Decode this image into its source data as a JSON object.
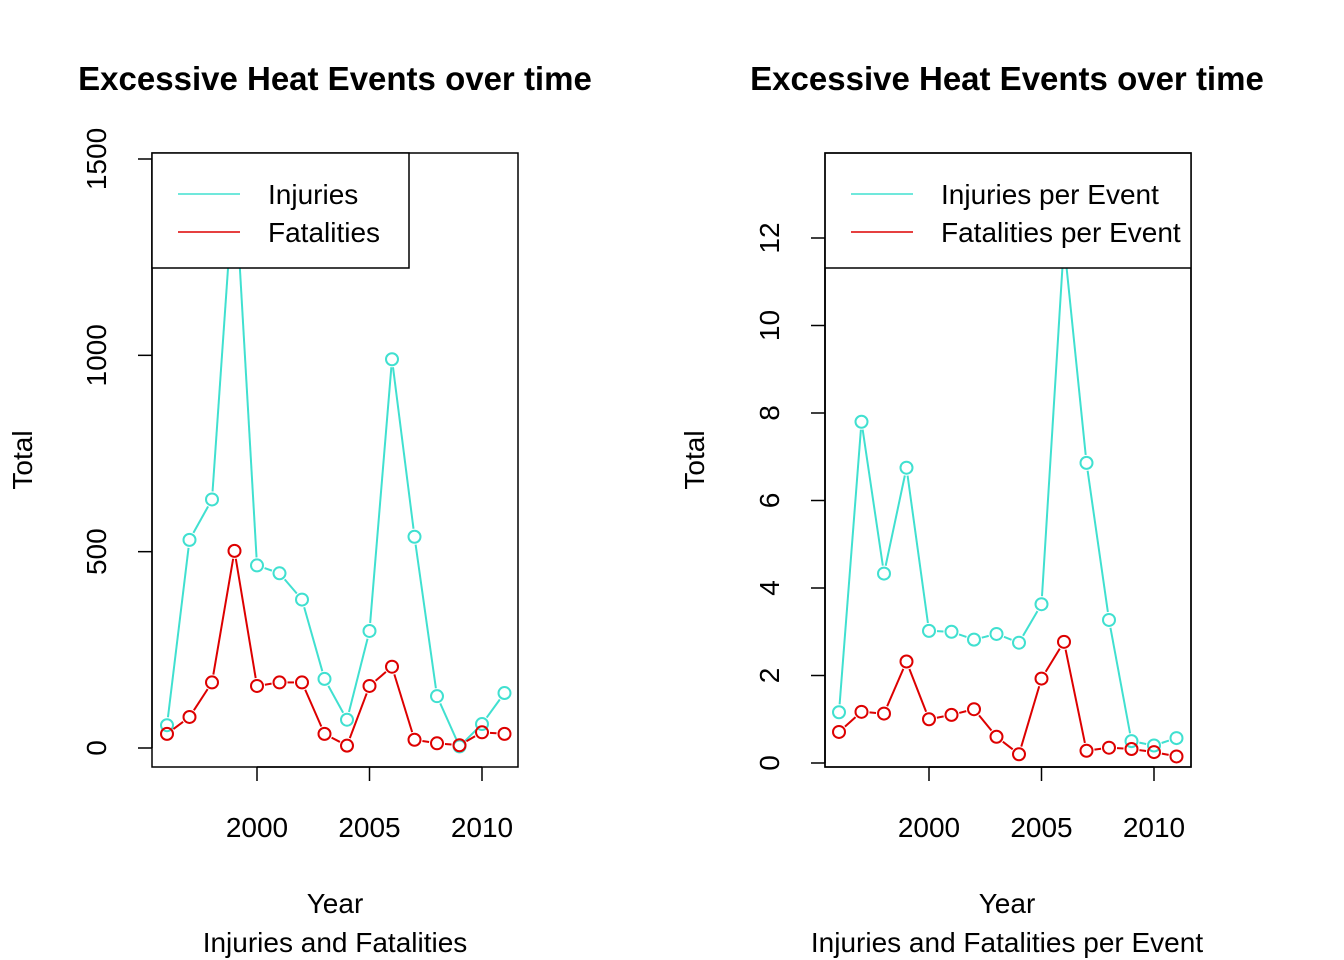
{
  "chart_data": [
    {
      "type": "line",
      "title": "Excessive Heat Events over time",
      "xlabel": "Year",
      "subtitle": "Injuries and Fatalities",
      "ylabel": "Total",
      "xlim": [
        1996,
        2011
      ],
      "ylim": [
        0,
        1500
      ],
      "xticks": [
        2000,
        2005,
        2010
      ],
      "yticks": [
        0,
        500,
        1000,
        1500
      ],
      "x": [
        1996,
        1997,
        1998,
        1999,
        2000,
        2001,
        2002,
        2003,
        2004,
        2005,
        2006,
        2007,
        2008,
        2009,
        2010,
        2011
      ],
      "series": [
        {
          "name": "Injuries",
          "color": "#40E0D0",
          "values": [
            58,
            530,
            633,
            1460,
            465,
            445,
            378,
            176,
            72,
            298,
            990,
            538,
            132,
            4,
            61,
            140
          ]
        },
        {
          "name": "Fatalities",
          "color": "#DD0000",
          "values": [
            36,
            79,
            167,
            502,
            158,
            167,
            167,
            36,
            6,
            158,
            207,
            21,
            12,
            7,
            40,
            36
          ]
        }
      ],
      "legend_position": "top-left",
      "grid": false
    },
    {
      "type": "line",
      "title": "Excessive Heat Events over time",
      "xlabel": "Year",
      "subtitle": "Injuries and Fatalities per Event",
      "ylabel": "Total",
      "xlim": [
        1996,
        2011
      ],
      "ylim": [
        0,
        13.6
      ],
      "xticks": [
        2000,
        2005,
        2010
      ],
      "yticks": [
        0,
        2,
        4,
        6,
        8,
        10,
        12
      ],
      "x": [
        1996,
        1997,
        1998,
        1999,
        2000,
        2001,
        2002,
        2003,
        2004,
        2005,
        2006,
        2007,
        2008,
        2009,
        2010,
        2011
      ],
      "series": [
        {
          "name": "Injuries per Event",
          "color": "#40E0D0",
          "values": [
            1.16,
            7.8,
            4.33,
            6.75,
            3.02,
            3.0,
            2.82,
            2.95,
            2.75,
            3.63,
            11.9,
            6.86,
            3.27,
            0.5,
            0.4,
            0.57
          ]
        },
        {
          "name": "Fatalities per Event",
          "color": "#DD0000",
          "values": [
            0.71,
            1.17,
            1.13,
            2.32,
            1.0,
            1.1,
            1.23,
            0.6,
            0.2,
            1.93,
            2.77,
            0.28,
            0.35,
            0.32,
            0.25,
            0.15
          ]
        }
      ],
      "legend_position": "top-left",
      "grid": false
    }
  ]
}
